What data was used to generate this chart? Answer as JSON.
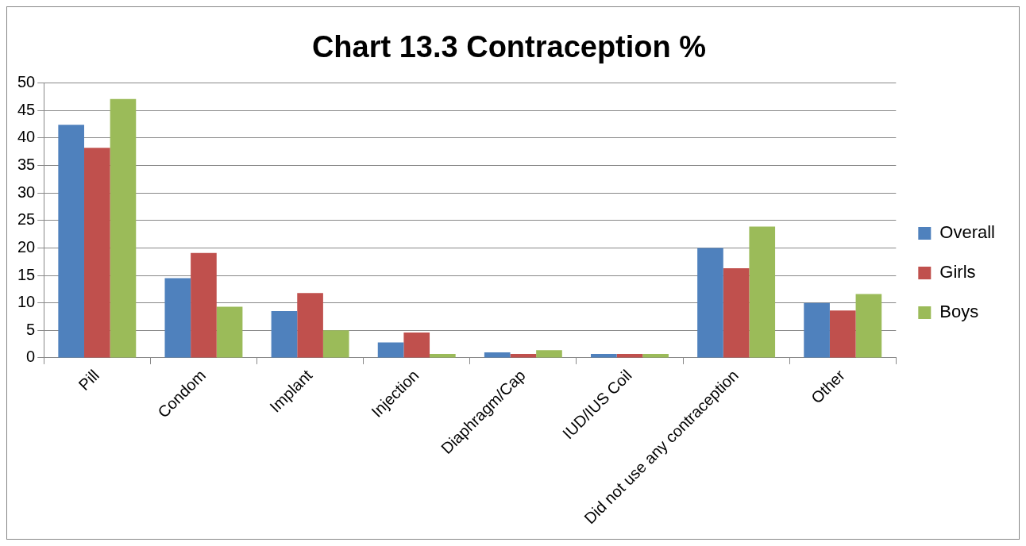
{
  "chart_data": {
    "type": "bar",
    "title": "Chart 13.3 Contraception %",
    "categories": [
      "Pill",
      "Condom",
      "Implant",
      "Injection",
      "Diaphragm/Cap",
      "IUD/IUS Coil",
      "Did not use any contraception",
      "Other"
    ],
    "series": [
      {
        "name": "Overall",
        "color": "#4f81bd",
        "values": [
          42.4,
          14.5,
          8.5,
          2.8,
          1.0,
          0.7,
          20.0,
          10.0
        ]
      },
      {
        "name": "Girls",
        "color": "#c0504d",
        "values": [
          38.2,
          19.1,
          11.8,
          4.6,
          0.7,
          0.7,
          16.3,
          8.6
        ]
      },
      {
        "name": "Boys",
        "color": "#9bbb59",
        "values": [
          47.1,
          9.3,
          5.0,
          0.7,
          1.4,
          0.7,
          23.9,
          11.6
        ]
      }
    ],
    "ylim": [
      0,
      50
    ],
    "yticks": [
      0,
      5,
      10,
      15,
      20,
      25,
      30,
      35,
      40,
      45,
      50
    ],
    "grid": "y",
    "legend": "right"
  }
}
